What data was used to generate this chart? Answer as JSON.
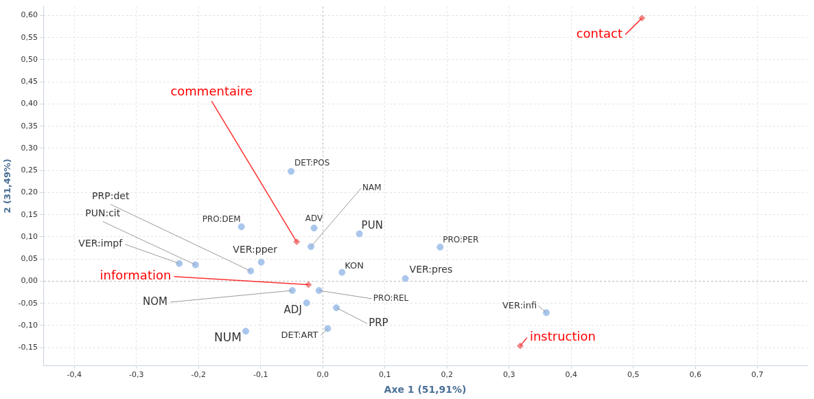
{
  "chart_data": {
    "type": "scatter",
    "xlabel": "Axe 1 (51,91%)",
    "ylabel": "2 (31,49%)",
    "xlim": [
      -0.45,
      0.78
    ],
    "ylim": [
      -0.19,
      0.62
    ],
    "xticks": [
      {
        "value": -0.4,
        "label": "-0,4"
      },
      {
        "value": -0.3,
        "label": "-0,3"
      },
      {
        "value": -0.2,
        "label": "-0,2"
      },
      {
        "value": -0.1,
        "label": "-0,1"
      },
      {
        "value": 0,
        "label": "0,0"
      },
      {
        "value": 0.1,
        "label": "0,1"
      },
      {
        "value": 0.2,
        "label": "0,2"
      },
      {
        "value": 0.3,
        "label": "0,3"
      },
      {
        "value": 0.4,
        "label": "0,4"
      },
      {
        "value": 0.5,
        "label": "0,5"
      },
      {
        "value": 0.6,
        "label": "0,6"
      },
      {
        "value": 0.7,
        "label": "0,7"
      }
    ],
    "yticks": [
      {
        "value": -0.15,
        "label": "-0,15"
      },
      {
        "value": -0.1,
        "label": "-0,10"
      },
      {
        "value": -0.05,
        "label": "-0,05"
      },
      {
        "value": 0,
        "label": "0,00"
      },
      {
        "value": 0.05,
        "label": "0,05"
      },
      {
        "value": 0.1,
        "label": "0,10"
      },
      {
        "value": 0.15,
        "label": "0,15"
      },
      {
        "value": 0.2,
        "label": "0,20"
      },
      {
        "value": 0.25,
        "label": "0,25"
      },
      {
        "value": 0.3,
        "label": "0,30"
      },
      {
        "value": 0.35,
        "label": "0,35"
      },
      {
        "value": 0.4,
        "label": "0,40"
      },
      {
        "value": 0.45,
        "label": "0,45"
      },
      {
        "value": 0.5,
        "label": "0,50"
      },
      {
        "value": 0.55,
        "label": "0,55"
      },
      {
        "value": 0.6,
        "label": "0,60"
      }
    ],
    "grid": true,
    "marker": "circle",
    "legend": false,
    "series": [
      {
        "color": "#a9c6ec",
        "x": [
          -0.051,
          -0.014,
          -0.019,
          0.059,
          0.189,
          -0.131,
          -0.099,
          -0.116,
          -0.205,
          -0.231,
          0.031,
          0.133,
          -0.006,
          -0.049,
          -0.026,
          0.022,
          0.008,
          -0.124,
          0.36
        ],
        "values": [
          0.248,
          0.12,
          0.078,
          0.107,
          0.077,
          0.123,
          0.043,
          0.023,
          0.037,
          0.04,
          0.02,
          0.006,
          -0.021,
          -0.021,
          -0.049,
          -0.06,
          -0.107,
          -0.113,
          -0.071
        ]
      },
      {
        "color": "#f08a8a",
        "marker": "diamond",
        "x": [
          0.514,
          -0.042,
          -0.023,
          0.318
        ],
        "values": [
          0.594,
          0.089,
          -0.008,
          -0.146
        ]
      }
    ],
    "annotations": [
      {
        "text": "DET:POS",
        "x": -0.051,
        "y": 0.248
      },
      {
        "text": "ADV",
        "x": -0.014,
        "y": 0.12
      },
      {
        "text": "NAM",
        "x": -0.019,
        "y": 0.078
      },
      {
        "text": "PUN",
        "x": 0.059,
        "y": 0.107
      },
      {
        "text": "PRO:PER",
        "x": 0.189,
        "y": 0.077
      },
      {
        "text": "PRO:DEM",
        "x": -0.131,
        "y": 0.123
      },
      {
        "text": "VER:pper",
        "x": -0.099,
        "y": 0.043
      },
      {
        "text": "PRP:det",
        "x": -0.116,
        "y": 0.023
      },
      {
        "text": "PUN:cit",
        "x": -0.205,
        "y": 0.037
      },
      {
        "text": "VER:impf",
        "x": -0.231,
        "y": 0.04
      },
      {
        "text": "KON",
        "x": 0.031,
        "y": 0.02
      },
      {
        "text": "VER:pres",
        "x": 0.133,
        "y": 0.006
      },
      {
        "text": "PRO:REL",
        "x": -0.006,
        "y": -0.021
      },
      {
        "text": "NOM",
        "x": -0.049,
        "y": -0.021
      },
      {
        "text": "ADJ",
        "x": -0.026,
        "y": -0.049
      },
      {
        "text": "PRP",
        "x": 0.022,
        "y": -0.06
      },
      {
        "text": "DET:ART",
        "x": 0.008,
        "y": -0.107
      },
      {
        "text": "NUM",
        "x": -0.124,
        "y": -0.113
      },
      {
        "text": "VER:infi",
        "x": 0.36,
        "y": -0.071
      },
      {
        "text": "contact",
        "x": 0.514,
        "y": 0.594
      },
      {
        "text": "commentaire",
        "x": -0.042,
        "y": 0.089
      },
      {
        "text": "information",
        "x": -0.023,
        "y": -0.008
      },
      {
        "text": "instruction",
        "x": 0.318,
        "y": -0.146
      }
    ]
  }
}
